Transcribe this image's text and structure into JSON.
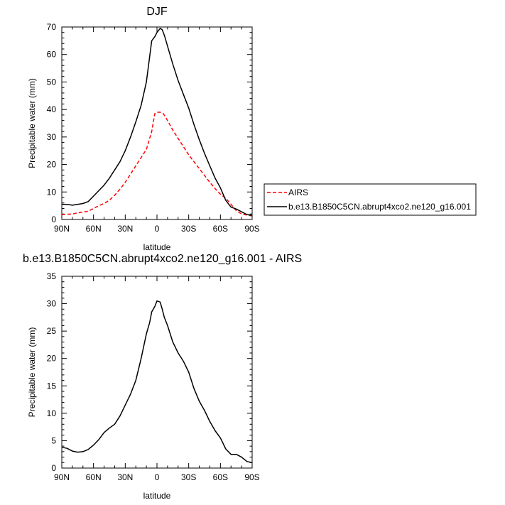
{
  "chart_data": [
    {
      "type": "line",
      "title": "DJF",
      "xlabel": "latitude",
      "ylabel": "Precipitable water (mm)",
      "xlim": [
        -90,
        90
      ],
      "ylim": [
        0,
        70
      ],
      "xticks": [
        -90,
        -60,
        -30,
        0,
        30,
        60,
        90
      ],
      "xtick_labels": [
        "90N",
        "60N",
        "30N",
        "0",
        "30S",
        "60S",
        "90S"
      ],
      "yticks": [
        0,
        10,
        20,
        30,
        40,
        50,
        60,
        70
      ],
      "ytick_labels": [
        "0",
        "10",
        "20",
        "30",
        "40",
        "50",
        "60",
        "70"
      ],
      "legend_position": "right",
      "series": [
        {
          "name": "AIRS",
          "color": "#ff0000",
          "dash": "dashed",
          "x": [
            -90,
            -85,
            -80,
            -75,
            -70,
            -65,
            -60,
            -55,
            -50,
            -45,
            -40,
            -35,
            -30,
            -25,
            -20,
            -15,
            -10,
            -5,
            -2,
            0,
            3,
            6,
            10,
            15,
            20,
            25,
            30,
            35,
            40,
            45,
            50,
            55,
            60,
            65,
            70,
            75,
            80,
            85,
            90
          ],
          "y": [
            1.8,
            1.9,
            2.0,
            2.4,
            2.7,
            3.0,
            4.0,
            5.0,
            5.8,
            7.0,
            8.8,
            11,
            13.5,
            16.5,
            19.5,
            22.5,
            25.5,
            32,
            38.5,
            39,
            39,
            38.5,
            36,
            32.5,
            29.5,
            26.5,
            23.5,
            21,
            18.5,
            16,
            13.5,
            11.2,
            9.2,
            7.8,
            5.5,
            3.2,
            2.0,
            1.6,
            1.3
          ]
        },
        {
          "name": "b.e13.B1850C5CN.abrupt4xco2.ne120_g16.001",
          "color": "#000000",
          "dash": "solid",
          "x": [
            -90,
            -85,
            -80,
            -75,
            -70,
            -65,
            -60,
            -55,
            -50,
            -45,
            -40,
            -35,
            -30,
            -25,
            -20,
            -15,
            -10,
            -5,
            -2,
            0,
            3,
            5,
            7,
            10,
            15,
            20,
            25,
            30,
            35,
            40,
            45,
            50,
            55,
            60,
            65,
            70,
            75,
            80,
            85,
            90
          ],
          "y": [
            5.5,
            5.5,
            5.2,
            5.5,
            5.8,
            6.5,
            8.5,
            10.5,
            12.5,
            15,
            18,
            21,
            25,
            30,
            35.5,
            41.5,
            50,
            65,
            66.5,
            68,
            69.5,
            69,
            67,
            63,
            56.5,
            50.5,
            45.5,
            40.5,
            34.5,
            29,
            24,
            19.5,
            15,
            11.5,
            7,
            4.5,
            3.8,
            2.8,
            1.8,
            1.5
          ]
        }
      ]
    },
    {
      "type": "line",
      "title": "b.e13.B1850C5CN.abrupt4xco2.ne120_g16.001 - AIRS",
      "xlabel": "latitude",
      "ylabel": "Precipitable water (mm)",
      "xlim": [
        -90,
        90
      ],
      "ylim": [
        0,
        35
      ],
      "xticks": [
        -90,
        -60,
        -30,
        0,
        30,
        60,
        90
      ],
      "xtick_labels": [
        "90N",
        "60N",
        "30N",
        "0",
        "30S",
        "60S",
        "90S"
      ],
      "yticks": [
        0,
        5,
        10,
        15,
        20,
        25,
        30,
        35
      ],
      "ytick_labels": [
        "0",
        "5",
        "10",
        "15",
        "20",
        "25",
        "30",
        "35"
      ],
      "series": [
        {
          "color": "#000000",
          "dash": "solid",
          "x": [
            -90,
            -85,
            -80,
            -75,
            -70,
            -65,
            -60,
            -55,
            -50,
            -45,
            -40,
            -35,
            -30,
            -25,
            -20,
            -15,
            -10,
            -7,
            -5,
            -2,
            0,
            3,
            5,
            7,
            10,
            15,
            20,
            25,
            30,
            35,
            40,
            45,
            50,
            55,
            60,
            65,
            70,
            75,
            80,
            85,
            90
          ],
          "y": [
            3.8,
            3.6,
            3.1,
            2.9,
            3.0,
            3.4,
            4.2,
            5.2,
            6.5,
            7.3,
            8.0,
            9.5,
            11.5,
            13.5,
            16,
            20,
            24.5,
            26.5,
            28.5,
            29.5,
            30.5,
            30.3,
            29,
            27.5,
            26,
            23,
            21,
            19.5,
            17.5,
            14.5,
            12.2,
            10.5,
            8.5,
            6.8,
            5.5,
            3.5,
            2.5,
            2.5,
            2.0,
            1.2,
            1.0
          ]
        }
      ]
    }
  ]
}
